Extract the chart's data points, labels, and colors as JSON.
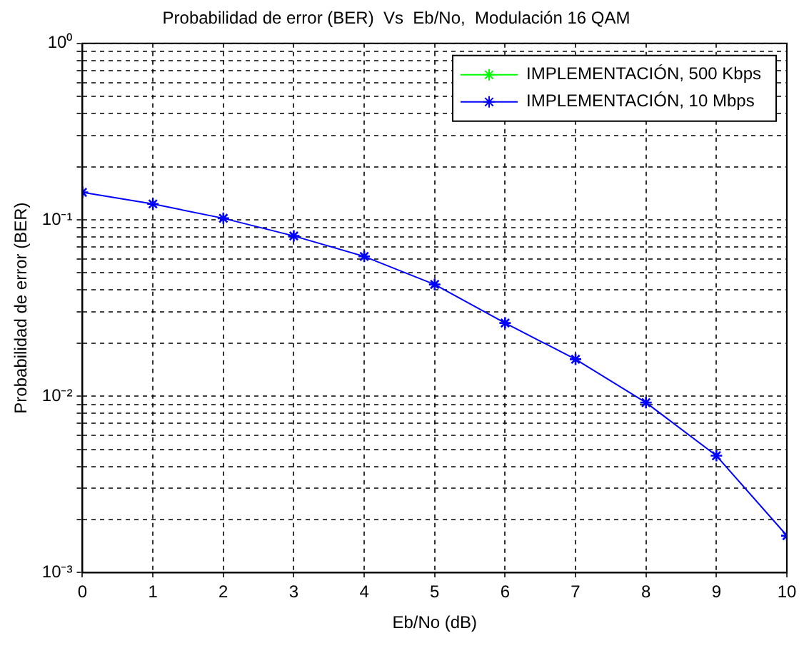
{
  "chart_data": {
    "type": "line",
    "title": "Probabilidad de error (BER)  Vs  Eb/No,  Modulación 16 QAM",
    "xlabel": "Eb/No (dB)",
    "ylabel": "Probabilidad de error (BER)",
    "x": [
      0,
      1,
      2,
      3,
      4,
      5,
      6,
      7,
      8,
      9,
      10
    ],
    "series": [
      {
        "name": "IMPLEMENTACIÓN, 500 Kbps",
        "color": "#00ff00",
        "values": [
          null,
          null,
          null,
          null,
          null,
          null,
          null,
          null,
          null,
          null,
          null
        ]
      },
      {
        "name": "IMPLEMENTACIÓN, 10 Mbps",
        "color": "#0000ff",
        "values": [
          0.143,
          0.123,
          0.102,
          0.081,
          0.062,
          0.043,
          0.026,
          0.0162,
          0.0092,
          0.0046,
          0.00162
        ]
      }
    ],
    "log": "y",
    "xlim": [
      0,
      10
    ],
    "xticks": [
      0,
      1,
      2,
      3,
      4,
      5,
      6,
      7,
      8,
      9,
      10
    ],
    "ylim": [
      0.001,
      1
    ],
    "yticks": [
      {
        "value": 0.001,
        "label": "10⁻³"
      },
      {
        "value": 0.002,
        "label": null
      },
      {
        "value": 0.003,
        "label": null
      },
      {
        "value": 0.004,
        "label": null
      },
      {
        "value": 0.005,
        "label": null
      },
      {
        "value": 0.006,
        "label": null
      },
      {
        "value": 0.007,
        "label": null
      },
      {
        "value": 0.008,
        "label": null
      },
      {
        "value": 0.009,
        "label": null
      },
      {
        "value": 0.01,
        "label": "10⁻²"
      },
      {
        "value": 0.02,
        "label": null
      },
      {
        "value": 0.03,
        "label": null
      },
      {
        "value": 0.04,
        "label": null
      },
      {
        "value": 0.05,
        "label": null
      },
      {
        "value": 0.06,
        "label": null
      },
      {
        "value": 0.07,
        "label": null
      },
      {
        "value": 0.08,
        "label": null
      },
      {
        "value": 0.09,
        "label": null
      },
      {
        "value": 0.1,
        "label": "10⁻¹"
      },
      {
        "value": 0.2,
        "label": null
      },
      {
        "value": 0.3,
        "label": null
      },
      {
        "value": 0.4,
        "label": null
      },
      {
        "value": 0.5,
        "label": null
      },
      {
        "value": 0.6,
        "label": null
      },
      {
        "value": 0.7,
        "label": null
      },
      {
        "value": 0.8,
        "label": null
      },
      {
        "value": 0.9,
        "label": null
      },
      {
        "value": 1,
        "label": "10⁰"
      }
    ],
    "grid": true,
    "legend": "top right",
    "marker": "cross",
    "line_style": "solid"
  }
}
